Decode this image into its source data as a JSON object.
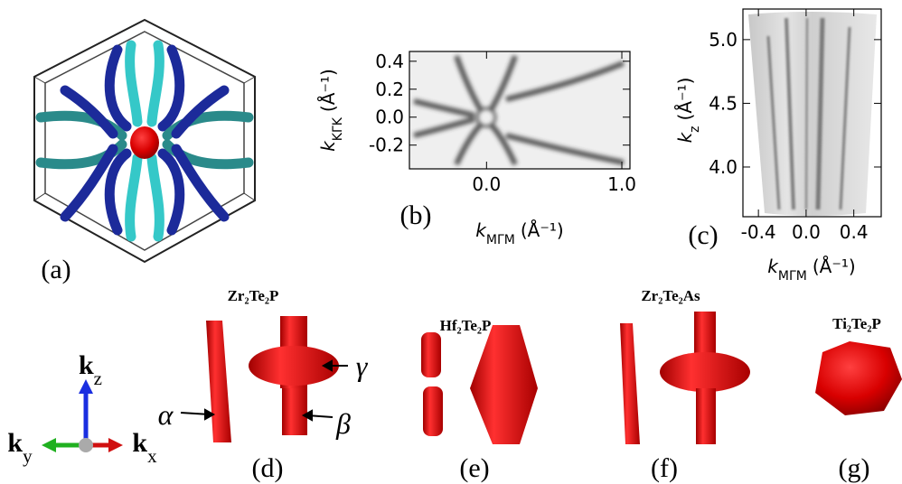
{
  "panels": [
    {
      "label": "(a)"
    },
    {
      "label": "(b)",
      "xlabel": {
        "symbol": "k",
        "subscript": "MΓM",
        "unit": "(Å⁻¹)"
      },
      "ylabel": {
        "symbol": "k",
        "subscript": "KΓK",
        "unit": "(Å⁻¹)"
      },
      "xlim": [
        -0.57,
        1.06
      ],
      "ylim": [
        -0.37,
        0.47
      ],
      "xticks": [
        {
          "value": 0,
          "label": "0.0"
        },
        {
          "value": 1,
          "label": "1.0"
        }
      ],
      "yticks": [
        0.4,
        0.2,
        {
          "value": 0,
          "label": "0.0"
        },
        -0.2
      ]
    },
    {
      "label": "(c)",
      "xlabel": {
        "symbol": "k",
        "subscript": "MΓM",
        "unit": "(Å⁻¹)"
      },
      "ylabel": {
        "symbol": "k",
        "subscript": "z",
        "unit": "(Å⁻¹)"
      },
      "xlim": [
        -0.53,
        0.63
      ],
      "ylim": [
        3.61,
        5.24
      ],
      "xticks": [
        -0.4,
        {
          "value": 0,
          "label": "0.0"
        },
        0.4
      ],
      "yticks": [
        {
          "value": 5,
          "label": "5.0"
        },
        4.5,
        {
          "value": 4,
          "label": "4.0"
        }
      ]
    },
    {
      "label": "(d)",
      "material": "Zr₂Te₂P",
      "annotations": [
        "α",
        "β",
        "γ"
      ]
    },
    {
      "label": "(e)",
      "material": "Hf₂Te₂P"
    },
    {
      "label": "(f)",
      "material": "Zr₂Te₂As"
    },
    {
      "label": "(g)",
      "material": "Ti₂Te₂P"
    }
  ],
  "axes_triad": {
    "z": {
      "symbol": "k",
      "subscript": "z"
    },
    "y": {
      "symbol": "k",
      "subscript": "y"
    },
    "x": {
      "symbol": "k",
      "subscript": "x"
    }
  }
}
